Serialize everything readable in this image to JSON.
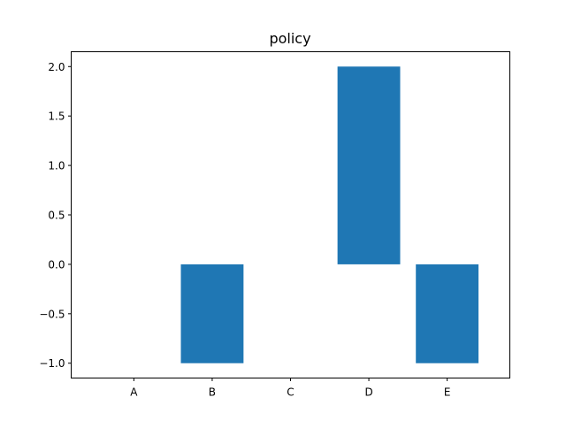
{
  "chart_data": {
    "type": "bar",
    "title": "policy",
    "xlabel": "",
    "ylabel": "",
    "categories": [
      "A",
      "B",
      "C",
      "D",
      "E"
    ],
    "values": [
      0,
      -1,
      0,
      2,
      -1
    ],
    "ylim": [
      -1.15,
      2.15
    ],
    "yticks": [
      -1.0,
      -0.5,
      0.0,
      0.5,
      1.0,
      1.5,
      2.0
    ],
    "ytick_labels": [
      "−1.0",
      "−0.5",
      "0.0",
      "0.5",
      "1.0",
      "1.5",
      "2.0"
    ],
    "bar_color": "#1f77b4",
    "grid": false,
    "legend": false
  }
}
